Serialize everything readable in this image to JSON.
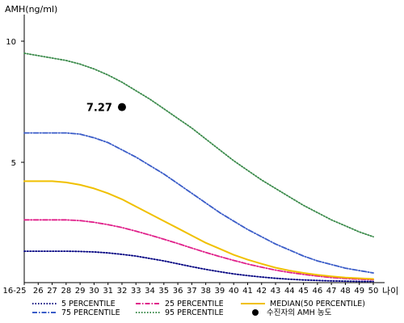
{
  "chart_data": {
    "type": "line",
    "ylabel": "AMH(ng/ml)",
    "xlabel": "나이",
    "x_ticks": [
      "16-25",
      "26",
      "27",
      "28",
      "29",
      "30",
      "31",
      "32",
      "33",
      "34",
      "35",
      "36",
      "37",
      "38",
      "39",
      "40",
      "41",
      "42",
      "43",
      "44",
      "45",
      "46",
      "47",
      "48",
      "49",
      "50"
    ],
    "y_ticks": [
      "5",
      "10"
    ],
    "ylim": [
      0,
      11
    ],
    "grid": false,
    "legend_position": "bottom",
    "series": [
      {
        "name": "5 PERCENTILE",
        "color": "#000080",
        "dash": "dotted",
        "values": [
          1.3,
          1.3,
          1.3,
          1.3,
          1.29,
          1.27,
          1.23,
          1.17,
          1.1,
          1.0,
          0.9,
          0.78,
          0.66,
          0.55,
          0.45,
          0.36,
          0.29,
          0.23,
          0.18,
          0.14,
          0.11,
          0.09,
          0.07,
          0.06,
          0.05,
          0.05
        ]
      },
      {
        "name": "75 PERCENTILE",
        "color": "#3a5cc8",
        "dash": "dashdot",
        "values": [
          6.2,
          6.2,
          6.2,
          6.2,
          6.15,
          6.0,
          5.8,
          5.5,
          5.2,
          4.85,
          4.5,
          4.1,
          3.7,
          3.3,
          2.9,
          2.55,
          2.2,
          1.9,
          1.6,
          1.35,
          1.1,
          0.9,
          0.75,
          0.6,
          0.5,
          0.4
        ]
      },
      {
        "name": "25 PERCENTILE",
        "color": "#e0208a",
        "dash": "dashdot",
        "values": [
          2.6,
          2.6,
          2.6,
          2.6,
          2.57,
          2.5,
          2.4,
          2.28,
          2.13,
          1.97,
          1.8,
          1.62,
          1.43,
          1.25,
          1.08,
          0.92,
          0.77,
          0.64,
          0.52,
          0.42,
          0.34,
          0.27,
          0.21,
          0.17,
          0.14,
          0.12
        ]
      },
      {
        "name": "95 PERCENTILE",
        "color": "#3a8a4a",
        "dash": "dotted",
        "values": [
          9.5,
          9.4,
          9.3,
          9.2,
          9.05,
          8.85,
          8.6,
          8.3,
          7.95,
          7.6,
          7.2,
          6.8,
          6.4,
          5.95,
          5.5,
          5.05,
          4.65,
          4.25,
          3.9,
          3.55,
          3.2,
          2.9,
          2.6,
          2.35,
          2.1,
          1.9
        ]
      },
      {
        "name": "MEDIAN(50 PERCENTILE)",
        "color": "#f0c000",
        "dash": "solid",
        "values": [
          4.2,
          4.2,
          4.2,
          4.15,
          4.05,
          3.9,
          3.7,
          3.45,
          3.15,
          2.85,
          2.55,
          2.25,
          1.95,
          1.65,
          1.4,
          1.15,
          0.95,
          0.78,
          0.62,
          0.5,
          0.4,
          0.32,
          0.26,
          0.21,
          0.18,
          0.15
        ]
      }
    ],
    "patient_point": {
      "label": "수진자의 AMH 농도",
      "x": "32",
      "y": 7.27,
      "value_label": "7.27"
    }
  }
}
